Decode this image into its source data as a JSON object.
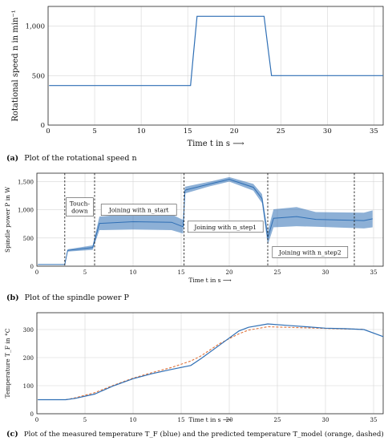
{
  "colors": {
    "measured": "#2f6fb5",
    "predicted": "#e0733a",
    "axis": "#222222",
    "grid": "#d6d6d6"
  },
  "chart_data": [
    {
      "type": "line",
      "caption_prefix": "(a)",
      "caption_text": "Plot of the rotational speed n",
      "xlabel": "Time t in s ⟶",
      "ylabel": "Rotational speed n in min⁻¹",
      "xlim": [
        0,
        36
      ],
      "ylim": [
        0,
        1200
      ],
      "xticks": [
        0,
        5,
        10,
        15,
        20,
        25,
        30,
        35
      ],
      "yticks": [
        0,
        500,
        1000
      ],
      "ytick_labels": [
        "0",
        "500",
        "1,000"
      ],
      "grid": true,
      "series": [
        {
          "x": [
            0.1,
            15.3,
            15.6,
            16.0,
            23.2,
            23.6,
            24.0,
            36
          ],
          "y": [
            400,
            400,
            700,
            1100,
            1100,
            800,
            500,
            500
          ]
        }
      ]
    },
    {
      "type": "line",
      "caption_prefix": "(b)",
      "caption_text": "Plot of the spindle power P",
      "xlabel": "Time t in s ⟶",
      "ylabel": "Spindle power P in W",
      "xlim": [
        0,
        36
      ],
      "ylim": [
        0,
        1650
      ],
      "xticks": [
        0,
        5,
        10,
        15,
        20,
        25,
        30,
        35
      ],
      "yticks": [
        0,
        500,
        1000,
        1500
      ],
      "ytick_labels": [
        "0",
        "500",
        "1,000",
        "1,500"
      ],
      "grid": true,
      "phase_lines": [
        2.9,
        6.0,
        15.3,
        24.0,
        33.0
      ],
      "annotations": [
        {
          "text": [
            "Touch-",
            "down"
          ],
          "x": 4.45,
          "y": 1050
        },
        {
          "text": [
            "Joining with n_start"
          ],
          "x": 10.6,
          "y": 1000
        },
        {
          "text": [
            "Joining with n_step1"
          ],
          "x": 19.6,
          "y": 700
        },
        {
          "text": [
            "Joining with n_step2"
          ],
          "x": 28.4,
          "y": 250
        }
      ],
      "series": [
        {
          "x": [
            0.1,
            2.9,
            3.2,
            5.8,
            6.5,
            10,
            14,
            15.2,
            15.4,
            18,
            20,
            22.5,
            23.4,
            24.0,
            24.6,
            27,
            29,
            34,
            34.9
          ],
          "y": [
            30,
            30,
            280,
            330,
            760,
            790,
            780,
            700,
            1350,
            1460,
            1540,
            1400,
            1200,
            500,
            850,
            880,
            830,
            810,
            840
          ],
          "band": [
            0,
            0,
            20,
            40,
            120,
            140,
            140,
            120,
            60,
            40,
            40,
            60,
            80,
            120,
            160,
            170,
            130,
            140,
            150
          ]
        }
      ]
    },
    {
      "type": "line",
      "caption_prefix": "(c)",
      "caption_text": "Plot of the measured temperature T_F (blue) and the predicted temperature T_model (orange, dashed)",
      "xlabel": "Time t in s ⟶",
      "ylabel": "Temperature T_F in °C",
      "xlim": [
        0,
        36
      ],
      "ylim": [
        0,
        360
      ],
      "xticks": [
        0,
        5,
        10,
        15,
        20,
        25,
        30,
        35
      ],
      "yticks": [
        0,
        100,
        200,
        300
      ],
      "grid": true,
      "series": [
        {
          "x": [
            0.1,
            3,
            4,
            6,
            8,
            10,
            12,
            14,
            16,
            17,
            19,
            21,
            22,
            24,
            26,
            28,
            30,
            32,
            34,
            36
          ],
          "y": [
            50,
            50,
            55,
            70,
            100,
            125,
            143,
            158,
            172,
            195,
            245,
            295,
            308,
            320,
            315,
            310,
            305,
            303,
            300,
            275
          ]
        },
        {
          "x": [
            0.1,
            3,
            4,
            6,
            8,
            10,
            12,
            14,
            16,
            17,
            19,
            21,
            22,
            24,
            26,
            28,
            30,
            32,
            34
          ],
          "y": [
            50,
            50,
            57,
            75,
            102,
            127,
            147,
            165,
            188,
            205,
            250,
            285,
            298,
            310,
            308,
            306,
            304,
            302,
            301
          ]
        }
      ]
    }
  ]
}
